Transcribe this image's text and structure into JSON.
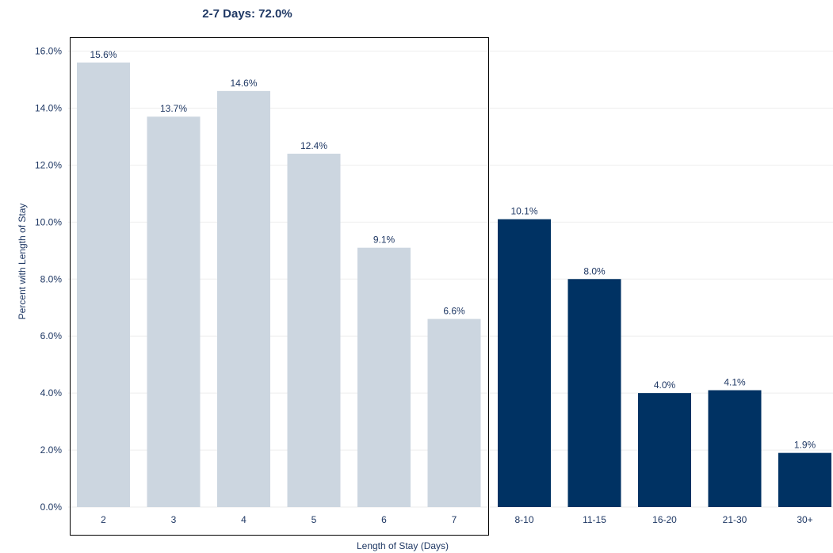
{
  "chart_data": {
    "type": "bar",
    "title": "2-7 Days: 72.0%",
    "xlabel": "Length of Stay (Days)",
    "ylabel": "Percent with Length of Stay",
    "categories": [
      "2",
      "3",
      "4",
      "5",
      "6",
      "7",
      "8-10",
      "11-15",
      "16-20",
      "21-30",
      "30+"
    ],
    "values": [
      15.6,
      13.7,
      14.6,
      12.4,
      9.1,
      6.6,
      10.1,
      8.0,
      4.0,
      4.1,
      1.9
    ],
    "value_labels": [
      "15.6%",
      "13.7%",
      "14.6%",
      "12.4%",
      "9.1%",
      "6.6%",
      "10.1%",
      "8.0%",
      "4.0%",
      "4.1%",
      "1.9%"
    ],
    "ylim": [
      0,
      16
    ],
    "yticks": [
      0,
      2,
      4,
      6,
      8,
      10,
      12,
      14,
      16
    ],
    "ytick_labels": [
      "0.0%",
      "2.0%",
      "4.0%",
      "6.0%",
      "8.0%",
      "10.0%",
      "12.0%",
      "14.0%",
      "16.0%"
    ],
    "grid": true,
    "highlighted_group": [
      "2",
      "3",
      "4",
      "5",
      "6",
      "7"
    ],
    "colors": {
      "highlighted_bar": "#ccd6e0",
      "other_bar": "#003263",
      "text": "#1f3864",
      "grid": "#eeeeee",
      "group_box": "#000000"
    }
  }
}
